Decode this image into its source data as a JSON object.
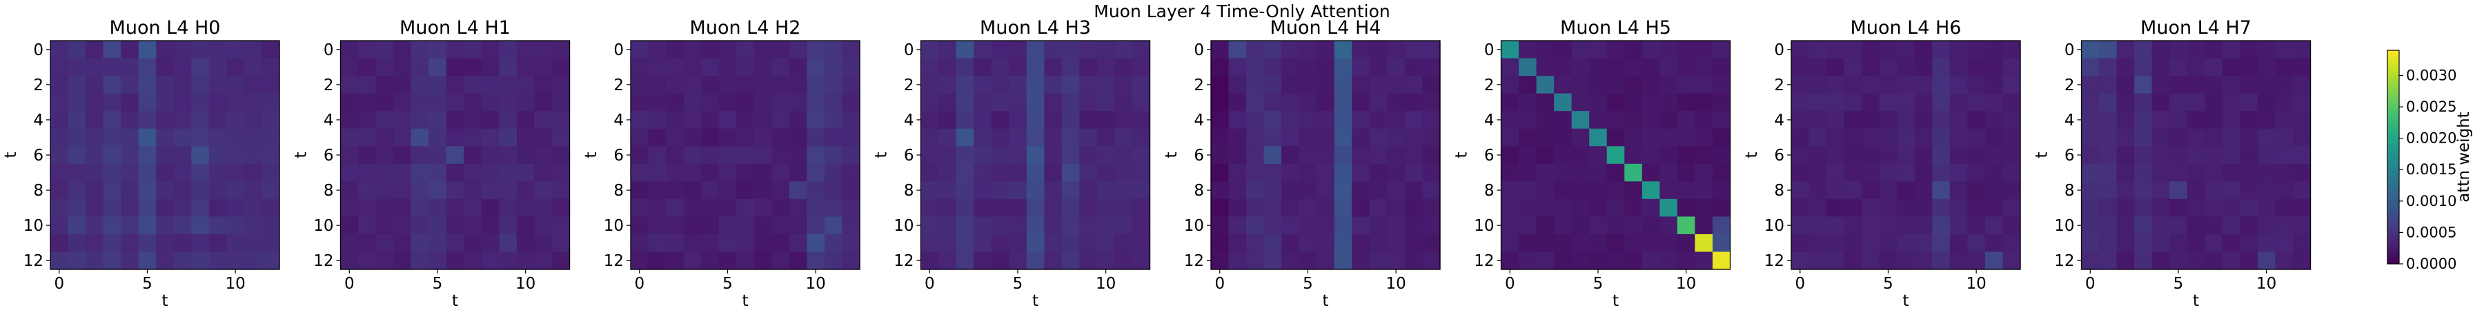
{
  "chart_data": {
    "type": "heatmap",
    "title": "Muon Layer 4 Time-Only Attention",
    "xlabel": "t",
    "ylabel": "t",
    "n": 13,
    "x_ticks": [
      0,
      5,
      10
    ],
    "y_ticks": [
      0,
      2,
      4,
      6,
      8,
      10,
      12
    ],
    "colorbar": {
      "label": "attn weight",
      "vmin": 0.0,
      "vmax": 0.0034,
      "ticks": [
        "0.0000",
        "0.0005",
        "0.0010",
        "0.0015",
        "0.0020",
        "0.0025",
        "0.0030"
      ],
      "colormap": "viridis"
    },
    "panels": [
      {
        "title": "Muon L4 H0",
        "base": 0.00042,
        "rowvar": 0.00012,
        "cols": [
          {
            "c": 1,
            "v": 8e-05
          },
          {
            "c": 3,
            "v": 0.00012
          },
          {
            "c": 5,
            "v": 0.0002
          },
          {
            "c": 8,
            "v": 0.00012
          }
        ],
        "cells": [
          {
            "r": 0,
            "c": 5,
            "v": 0.0009
          },
          {
            "r": 5,
            "c": 5,
            "v": 0.0009
          },
          {
            "r": 6,
            "c": 8,
            "v": 0.0008
          },
          {
            "r": 0,
            "c": 3,
            "v": 0.0007
          }
        ]
      },
      {
        "title": "Muon L4 H1",
        "base": 0.00032,
        "rowvar": 8e-05,
        "cols": [
          {
            "c": 4,
            "v": 0.00018
          },
          {
            "c": 5,
            "v": 0.0002
          },
          {
            "c": 9,
            "v": 0.00012
          }
        ],
        "cells": [
          {
            "r": 5,
            "c": 4,
            "v": 0.00075
          },
          {
            "r": 6,
            "c": 6,
            "v": 0.0007
          },
          {
            "r": 1,
            "c": 5,
            "v": 0.00065
          }
        ]
      },
      {
        "title": "Muon L4 H2",
        "base": 0.00028,
        "rowvar": 8e-05,
        "cols": [
          {
            "c": 10,
            "v": 0.00025
          },
          {
            "c": 11,
            "v": 0.00018
          },
          {
            "c": 12,
            "v": 0.0001
          }
        ],
        "cells": [
          {
            "r": 11,
            "c": 10,
            "v": 0.0008
          },
          {
            "r": 10,
            "c": 11,
            "v": 0.0007
          },
          {
            "r": 8,
            "c": 9,
            "v": 0.0006
          }
        ]
      },
      {
        "title": "Muon L4 H3",
        "base": 0.00035,
        "rowvar": 0.0001,
        "cols": [
          {
            "c": 2,
            "v": 0.0002
          },
          {
            "c": 6,
            "v": 0.0004
          },
          {
            "c": 8,
            "v": 0.00015
          }
        ],
        "cells": [
          {
            "r": 5,
            "c": 2,
            "v": 0.0009
          },
          {
            "r": 0,
            "c": 2,
            "v": 0.00085
          },
          {
            "r": 6,
            "c": 6,
            "v": 0.0009
          },
          {
            "r": 7,
            "c": 8,
            "v": 0.0007
          }
        ]
      },
      {
        "title": "Muon L4 H4",
        "base": 0.00028,
        "rowvar": 6e-05,
        "cols": [
          {
            "c": 0,
            "v": -0.00015
          },
          {
            "c": 2,
            "v": 0.00015
          },
          {
            "c": 3,
            "v": 0.00015
          },
          {
            "c": 7,
            "v": 0.00055
          }
        ],
        "cells": [
          {
            "r": 0,
            "c": 1,
            "v": 0.0007
          },
          {
            "r": 0,
            "c": 7,
            "v": 0.0011
          },
          {
            "r": 6,
            "c": 3,
            "v": 0.0008
          }
        ]
      },
      {
        "title": "Muon L4 H5",
        "base": 0.00022,
        "rowvar": 6e-05,
        "cols": [],
        "cells": [
          {
            "r": 0,
            "c": 0,
            "v": 0.0017
          },
          {
            "r": 1,
            "c": 1,
            "v": 0.0013
          },
          {
            "r": 2,
            "c": 2,
            "v": 0.0013
          },
          {
            "r": 3,
            "c": 3,
            "v": 0.0014
          },
          {
            "r": 4,
            "c": 4,
            "v": 0.0015
          },
          {
            "r": 5,
            "c": 5,
            "v": 0.0016
          },
          {
            "r": 6,
            "c": 6,
            "v": 0.0019
          },
          {
            "r": 7,
            "c": 7,
            "v": 0.0022
          },
          {
            "r": 8,
            "c": 8,
            "v": 0.0018
          },
          {
            "r": 9,
            "c": 9,
            "v": 0.0017
          },
          {
            "r": 10,
            "c": 10,
            "v": 0.0024
          },
          {
            "r": 11,
            "c": 11,
            "v": 0.0032
          },
          {
            "r": 12,
            "c": 12,
            "v": 0.0033
          },
          {
            "r": 10,
            "c": 12,
            "v": 0.0007
          },
          {
            "r": 11,
            "c": 12,
            "v": 0.0008
          }
        ]
      },
      {
        "title": "Muon L4 H6",
        "base": 0.00028,
        "rowvar": 6e-05,
        "cols": [
          {
            "c": 8,
            "v": 0.0002
          }
        ],
        "cells": [
          {
            "r": 8,
            "c": 8,
            "v": 0.0007
          },
          {
            "r": 12,
            "c": 11,
            "v": 0.0007
          }
        ]
      },
      {
        "title": "Muon L4 H7",
        "base": 0.00028,
        "rowvar": 6e-05,
        "cols": [
          {
            "c": 0,
            "v": 0.00012
          },
          {
            "c": 1,
            "v": 0.00015
          },
          {
            "c": 3,
            "v": 0.00015
          }
        ],
        "cells": [
          {
            "r": 0,
            "c": 0,
            "v": 0.0009
          },
          {
            "r": 0,
            "c": 1,
            "v": 0.0008
          },
          {
            "r": 1,
            "c": 0,
            "v": 0.0006
          },
          {
            "r": 2,
            "c": 3,
            "v": 0.0007
          },
          {
            "r": 8,
            "c": 5,
            "v": 0.0006
          },
          {
            "r": 12,
            "c": 10,
            "v": 0.0006
          }
        ]
      }
    ]
  }
}
